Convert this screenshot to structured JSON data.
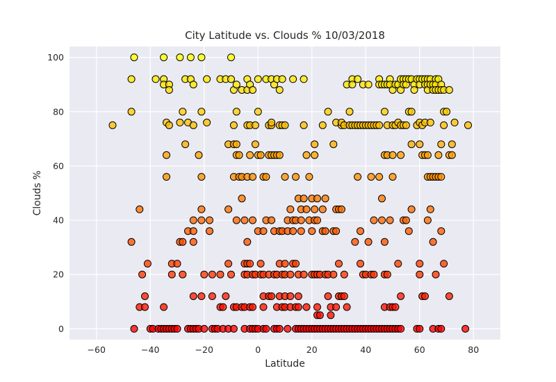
{
  "chart_data": {
    "type": "scatter",
    "title": "City Latitude vs. Clouds % 10/03/2018",
    "xlabel": "Latitude",
    "ylabel": "Clouds %",
    "xlim": [
      -70,
      90
    ],
    "ylim": [
      -4,
      104
    ],
    "xticks": [
      -60,
      -40,
      -20,
      0,
      20,
      40,
      60,
      80
    ],
    "yticks": [
      0,
      20,
      40,
      60,
      80,
      100
    ],
    "grid": true,
    "colormap": "autumn",
    "background_color": "#EAEAF2",
    "grid_color": "#FFFFFF",
    "edge_color": "#000000",
    "points": [
      [
        -54,
        75
      ],
      [
        -47,
        92
      ],
      [
        -47,
        80
      ],
      [
        -47,
        32
      ],
      [
        -46,
        100
      ],
      [
        -46,
        0
      ],
      [
        -44,
        44
      ],
      [
        -44,
        8
      ],
      [
        -43,
        20
      ],
      [
        -42,
        12
      ],
      [
        -42,
        8
      ],
      [
        -41,
        24
      ],
      [
        -40,
        0
      ],
      [
        -39,
        0
      ],
      [
        -38,
        92
      ],
      [
        -37,
        0
      ],
      [
        -36,
        0
      ],
      [
        -35,
        100
      ],
      [
        -35,
        92
      ],
      [
        -35,
        90
      ],
      [
        -35,
        8
      ],
      [
        -35,
        0
      ],
      [
        -34,
        76
      ],
      [
        -34,
        64
      ],
      [
        -34,
        56
      ],
      [
        -34,
        0
      ],
      [
        -33,
        90
      ],
      [
        -33,
        88
      ],
      [
        -33,
        75
      ],
      [
        -33,
        0
      ],
      [
        -32,
        24
      ],
      [
        -32,
        20
      ],
      [
        -32,
        0
      ],
      [
        -31,
        0
      ],
      [
        -30,
        24
      ],
      [
        -30,
        0
      ],
      [
        -29,
        100
      ],
      [
        -29,
        76
      ],
      [
        -29,
        32
      ],
      [
        -28,
        80
      ],
      [
        -28,
        32
      ],
      [
        -28,
        20
      ],
      [
        -27,
        92
      ],
      [
        -27,
        68
      ],
      [
        -26,
        76
      ],
      [
        -26,
        36
      ],
      [
        -26,
        0
      ],
      [
        -25,
        100
      ],
      [
        -25,
        92
      ],
      [
        -25,
        0
      ],
      [
        -24,
        90
      ],
      [
        -24,
        75
      ],
      [
        -24,
        40
      ],
      [
        -24,
        36
      ],
      [
        -24,
        32
      ],
      [
        -24,
        12
      ],
      [
        -24,
        0
      ],
      [
        -23,
        0
      ],
      [
        -22,
        64
      ],
      [
        -22,
        0
      ],
      [
        -21,
        100
      ],
      [
        -21,
        80
      ],
      [
        -21,
        56
      ],
      [
        -21,
        44
      ],
      [
        -21,
        40
      ],
      [
        -21,
        12
      ],
      [
        -20,
        20
      ],
      [
        -20,
        0
      ],
      [
        -19,
        76
      ],
      [
        -19,
        92
      ],
      [
        -18,
        40
      ],
      [
        -18,
        36
      ],
      [
        -17,
        20
      ],
      [
        -17,
        12
      ],
      [
        -17,
        0
      ],
      [
        -16,
        0
      ],
      [
        -15,
        0
      ],
      [
        -14,
        92
      ],
      [
        -14,
        20
      ],
      [
        -14,
        8
      ],
      [
        -13,
        0
      ],
      [
        -13,
        8
      ],
      [
        -12,
        92
      ],
      [
        -12,
        12
      ],
      [
        -11,
        68
      ],
      [
        -11,
        44
      ],
      [
        -11,
        24
      ],
      [
        -11,
        0
      ],
      [
        -10,
        100
      ],
      [
        -10,
        92
      ],
      [
        -10,
        20
      ],
      [
        -9,
        88
      ],
      [
        -9,
        75
      ],
      [
        -9,
        68
      ],
      [
        -9,
        56
      ],
      [
        -9,
        8
      ],
      [
        -9,
        0
      ],
      [
        -8,
        90
      ],
      [
        -8,
        80
      ],
      [
        -8,
        68
      ],
      [
        -8,
        64
      ],
      [
        -8,
        40
      ],
      [
        -8,
        8
      ],
      [
        -7,
        64
      ],
      [
        -7,
        56
      ],
      [
        -6,
        88
      ],
      [
        -6,
        56
      ],
      [
        -6,
        48
      ],
      [
        -6,
        8
      ],
      [
        -5,
        40
      ],
      [
        -5,
        24
      ],
      [
        -5,
        20
      ],
      [
        -5,
        8
      ],
      [
        -5,
        0
      ],
      [
        -4,
        92
      ],
      [
        -4,
        88
      ],
      [
        -4,
        75
      ],
      [
        -4,
        56
      ],
      [
        -4,
        32
      ],
      [
        -4,
        24
      ],
      [
        -4,
        20
      ],
      [
        -3,
        90
      ],
      [
        -3,
        75
      ],
      [
        -3,
        64
      ],
      [
        -3,
        24
      ],
      [
        -3,
        8
      ],
      [
        -3,
        0
      ],
      [
        -2,
        88
      ],
      [
        -2,
        56
      ],
      [
        -2,
        40
      ],
      [
        -2,
        20
      ],
      [
        -2,
        8
      ],
      [
        -2,
        0
      ],
      [
        -1,
        75
      ],
      [
        -1,
        68
      ],
      [
        -1,
        20
      ],
      [
        -1,
        0
      ],
      [
        0,
        92
      ],
      [
        0,
        80
      ],
      [
        0,
        64
      ],
      [
        0,
        36
      ],
      [
        0,
        0
      ],
      [
        1,
        24
      ],
      [
        1,
        20
      ],
      [
        1,
        64
      ],
      [
        2,
        56
      ],
      [
        2,
        36
      ],
      [
        2,
        20
      ],
      [
        2,
        12
      ],
      [
        2,
        8
      ],
      [
        2,
        0
      ],
      [
        3,
        92
      ],
      [
        3,
        56
      ],
      [
        3,
        40
      ],
      [
        3,
        0
      ],
      [
        4,
        75
      ],
      [
        4,
        64
      ],
      [
        4,
        20
      ],
      [
        4,
        12
      ],
      [
        5,
        92
      ],
      [
        5,
        75
      ],
      [
        5,
        76
      ],
      [
        5,
        64
      ],
      [
        5,
        40
      ],
      [
        5,
        12
      ],
      [
        6,
        90
      ],
      [
        6,
        64
      ],
      [
        6,
        36
      ],
      [
        6,
        20
      ],
      [
        6,
        0
      ],
      [
        7,
        92
      ],
      [
        7,
        64
      ],
      [
        7,
        20
      ],
      [
        7,
        8
      ],
      [
        7,
        0
      ],
      [
        8,
        88
      ],
      [
        8,
        64
      ],
      [
        8,
        75
      ],
      [
        8,
        24
      ],
      [
        8,
        36
      ],
      [
        8,
        12
      ],
      [
        8,
        0
      ],
      [
        9,
        92
      ],
      [
        9,
        75
      ],
      [
        9,
        36
      ],
      [
        9,
        20
      ],
      [
        9,
        8
      ],
      [
        10,
        75
      ],
      [
        10,
        56
      ],
      [
        10,
        20
      ],
      [
        10,
        24
      ],
      [
        10,
        12
      ],
      [
        10,
        8
      ],
      [
        11,
        40
      ],
      [
        11,
        36
      ],
      [
        11,
        0
      ],
      [
        12,
        44
      ],
      [
        12,
        20
      ],
      [
        12,
        12
      ],
      [
        12,
        8
      ],
      [
        13,
        92
      ],
      [
        13,
        40
      ],
      [
        13,
        36
      ],
      [
        13,
        24
      ],
      [
        14,
        40
      ],
      [
        14,
        56
      ],
      [
        14,
        24
      ],
      [
        14,
        8
      ],
      [
        14,
        0
      ],
      [
        15,
        48
      ],
      [
        15,
        20
      ],
      [
        15,
        12
      ],
      [
        15,
        8
      ],
      [
        15,
        0
      ],
      [
        16,
        40
      ],
      [
        16,
        44
      ],
      [
        16,
        36
      ],
      [
        16,
        0
      ],
      [
        17,
        92
      ],
      [
        17,
        75
      ],
      [
        17,
        48
      ],
      [
        17,
        20
      ],
      [
        17,
        0
      ],
      [
        18,
        64
      ],
      [
        18,
        44
      ],
      [
        18,
        8
      ],
      [
        18,
        0
      ],
      [
        19,
        56
      ],
      [
        19,
        40
      ],
      [
        19,
        0
      ],
      [
        20,
        48
      ],
      [
        20,
        36
      ],
      [
        20,
        20
      ],
      [
        20,
        0
      ],
      [
        21,
        64
      ],
      [
        21,
        68
      ],
      [
        21,
        44
      ],
      [
        21,
        40
      ],
      [
        21,
        20
      ],
      [
        21,
        0
      ],
      [
        22,
        48
      ],
      [
        22,
        20
      ],
      [
        22,
        40
      ],
      [
        22,
        8
      ],
      [
        22,
        5
      ],
      [
        22,
        0
      ],
      [
        23,
        20
      ],
      [
        23,
        5
      ],
      [
        23,
        0
      ],
      [
        24,
        75
      ],
      [
        24,
        44
      ],
      [
        24,
        36
      ],
      [
        24,
        0
      ],
      [
        25,
        48
      ],
      [
        25,
        36
      ],
      [
        25,
        20
      ],
      [
        25,
        0
      ],
      [
        26,
        80
      ],
      [
        26,
        20
      ],
      [
        26,
        12
      ],
      [
        26,
        0
      ],
      [
        27,
        8
      ],
      [
        27,
        5
      ],
      [
        27,
        0
      ],
      [
        28,
        68
      ],
      [
        28,
        36
      ],
      [
        28,
        20
      ],
      [
        28,
        0
      ],
      [
        29,
        76
      ],
      [
        29,
        44
      ],
      [
        29,
        36
      ],
      [
        29,
        8
      ],
      [
        29,
        0
      ],
      [
        30,
        44
      ],
      [
        30,
        24
      ],
      [
        30,
        12
      ],
      [
        30,
        0
      ],
      [
        31,
        75
      ],
      [
        31,
        76
      ],
      [
        31,
        44
      ],
      [
        31,
        12
      ],
      [
        31,
        0
      ],
      [
        32,
        75
      ],
      [
        32,
        20
      ],
      [
        32,
        12
      ],
      [
        32,
        0
      ],
      [
        33,
        90
      ],
      [
        33,
        8
      ],
      [
        33,
        0
      ],
      [
        34,
        80
      ],
      [
        34,
        75
      ],
      [
        34,
        0
      ],
      [
        35,
        92
      ],
      [
        35,
        90
      ],
      [
        35,
        75
      ],
      [
        35,
        0
      ],
      [
        36,
        75
      ],
      [
        36,
        32
      ],
      [
        36,
        0
      ],
      [
        37,
        92
      ],
      [
        37,
        75
      ],
      [
        37,
        56
      ],
      [
        37,
        0
      ],
      [
        38,
        75
      ],
      [
        38,
        36
      ],
      [
        38,
        24
      ],
      [
        38,
        0
      ],
      [
        39,
        90
      ],
      [
        39,
        75
      ],
      [
        39,
        20
      ],
      [
        39,
        0
      ],
      [
        40,
        75
      ],
      [
        40,
        20
      ],
      [
        40,
        0
      ],
      [
        41,
        90
      ],
      [
        41,
        75
      ],
      [
        41,
        32
      ],
      [
        41,
        0
      ],
      [
        42,
        75
      ],
      [
        42,
        56
      ],
      [
        42,
        20
      ],
      [
        42,
        0
      ],
      [
        43,
        75
      ],
      [
        43,
        40
      ],
      [
        43,
        20
      ],
      [
        43,
        0
      ],
      [
        44,
        75
      ],
      [
        44,
        0
      ],
      [
        45,
        92
      ],
      [
        45,
        90
      ],
      [
        45,
        75
      ],
      [
        45,
        56
      ],
      [
        45,
        0
      ],
      [
        46,
        90
      ],
      [
        46,
        48
      ],
      [
        46,
        40
      ],
      [
        46,
        0
      ],
      [
        47,
        90
      ],
      [
        47,
        80
      ],
      [
        47,
        64
      ],
      [
        47,
        32
      ],
      [
        47,
        20
      ],
      [
        47,
        8
      ],
      [
        47,
        0
      ],
      [
        48,
        90
      ],
      [
        48,
        75
      ],
      [
        48,
        64
      ],
      [
        48,
        20
      ],
      [
        48,
        0
      ],
      [
        49,
        92
      ],
      [
        49,
        90
      ],
      [
        49,
        40
      ],
      [
        49,
        8
      ],
      [
        49,
        0
      ],
      [
        50,
        88
      ],
      [
        50,
        75
      ],
      [
        50,
        64
      ],
      [
        50,
        56
      ],
      [
        50,
        8
      ],
      [
        50,
        0
      ],
      [
        51,
        90
      ],
      [
        51,
        75
      ],
      [
        51,
        8
      ],
      [
        51,
        0
      ],
      [
        52,
        90
      ],
      [
        52,
        76
      ],
      [
        52,
        24
      ],
      [
        52,
        0
      ],
      [
        53,
        92
      ],
      [
        53,
        88
      ],
      [
        53,
        75
      ],
      [
        53,
        64
      ],
      [
        53,
        12
      ],
      [
        53,
        0
      ],
      [
        54,
        92
      ],
      [
        54,
        90
      ],
      [
        54,
        75
      ],
      [
        54,
        40
      ],
      [
        55,
        92
      ],
      [
        55,
        90
      ],
      [
        55,
        75
      ],
      [
        55,
        40
      ],
      [
        56,
        92
      ],
      [
        56,
        80
      ],
      [
        56,
        36
      ],
      [
        57,
        92
      ],
      [
        57,
        80
      ],
      [
        57,
        68
      ],
      [
        57,
        44
      ],
      [
        58,
        90
      ],
      [
        58,
        88
      ],
      [
        59,
        92
      ],
      [
        59,
        75
      ],
      [
        59,
        0
      ],
      [
        60,
        92
      ],
      [
        60,
        90
      ],
      [
        60,
        76
      ],
      [
        60,
        68
      ],
      [
        60,
        24
      ],
      [
        60,
        20
      ],
      [
        60,
        0
      ],
      [
        61,
        92
      ],
      [
        61,
        75
      ],
      [
        61,
        64
      ],
      [
        61,
        12
      ],
      [
        62,
        92
      ],
      [
        62,
        90
      ],
      [
        62,
        76
      ],
      [
        62,
        64
      ],
      [
        62,
        12
      ],
      [
        63,
        92
      ],
      [
        63,
        90
      ],
      [
        63,
        88
      ],
      [
        63,
        64
      ],
      [
        63,
        56
      ],
      [
        63,
        40
      ],
      [
        64,
        92
      ],
      [
        64,
        90
      ],
      [
        64,
        76
      ],
      [
        64,
        44
      ],
      [
        64,
        56
      ],
      [
        65,
        90
      ],
      [
        65,
        88
      ],
      [
        65,
        56
      ],
      [
        65,
        32
      ],
      [
        65,
        0
      ],
      [
        66,
        92
      ],
      [
        66,
        90
      ],
      [
        66,
        88
      ],
      [
        66,
        56
      ],
      [
        66,
        20
      ],
      [
        67,
        92
      ],
      [
        67,
        88
      ],
      [
        67,
        64
      ],
      [
        67,
        56
      ],
      [
        67,
        0
      ],
      [
        68,
        90
      ],
      [
        68,
        88
      ],
      [
        68,
        68
      ],
      [
        68,
        56
      ],
      [
        68,
        36
      ],
      [
        68,
        0
      ],
      [
        69,
        88
      ],
      [
        69,
        80
      ],
      [
        69,
        75
      ],
      [
        69,
        24
      ],
      [
        70,
        80
      ],
      [
        71,
        88
      ],
      [
        71,
        64
      ],
      [
        71,
        12
      ],
      [
        72,
        64
      ],
      [
        72,
        68
      ],
      [
        73,
        76
      ],
      [
        77,
        0
      ],
      [
        78,
        75
      ]
    ]
  }
}
